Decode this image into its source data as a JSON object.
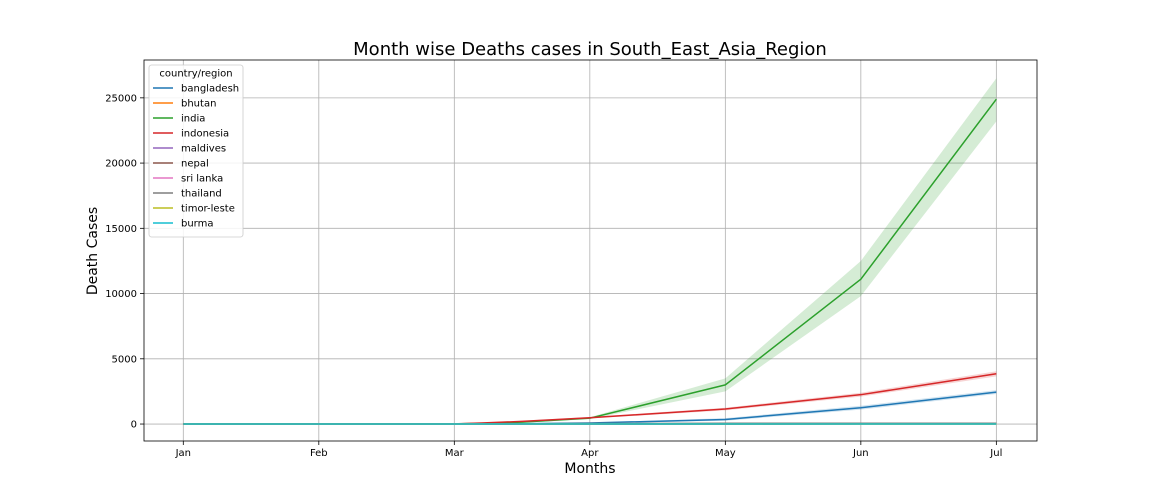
{
  "chart_data": {
    "type": "line",
    "title": "Month wise Deaths cases in South_East_Asia_Region",
    "xlabel": "Months",
    "ylabel": "Death Cases",
    "categories": [
      "Jan",
      "Feb",
      "Mar",
      "Apr",
      "May",
      "Jun",
      "Jul"
    ],
    "yticks": [
      0,
      5000,
      10000,
      15000,
      20000,
      25000
    ],
    "ylim": [
      -1300,
      27900
    ],
    "xlim": [
      -0.29,
      6.3
    ],
    "grid": true,
    "legend": {
      "title": "country/region",
      "placement": "top-left"
    },
    "series": [
      {
        "name": "bangladesh",
        "color": "#1f77b4",
        "points": [
          [
            0,
            0
          ],
          [
            1,
            0
          ],
          [
            2,
            0
          ],
          [
            2.4,
            10
          ],
          [
            3,
            80
          ],
          [
            4,
            350
          ],
          [
            5,
            1250
          ],
          [
            6,
            2450
          ]
        ],
        "lower": [
          [
            0,
            0
          ],
          [
            1,
            0
          ],
          [
            2,
            0
          ],
          [
            2.4,
            5
          ],
          [
            3,
            50
          ],
          [
            4,
            250
          ],
          [
            5,
            1100
          ],
          [
            6,
            2300
          ]
        ],
        "upper": [
          [
            0,
            0
          ],
          [
            1,
            0
          ],
          [
            2,
            0
          ],
          [
            2.4,
            15
          ],
          [
            3,
            110
          ],
          [
            4,
            450
          ],
          [
            5,
            1400
          ],
          [
            6,
            2600
          ]
        ]
      },
      {
        "name": "bhutan",
        "color": "#ff7f0e",
        "points": [
          [
            0,
            0
          ],
          [
            1,
            0
          ],
          [
            2,
            0
          ],
          [
            3,
            0
          ],
          [
            4,
            0
          ],
          [
            5,
            0
          ],
          [
            6,
            0
          ]
        ],
        "lower": [
          [
            0,
            0
          ],
          [
            1,
            0
          ],
          [
            2,
            0
          ],
          [
            3,
            0
          ],
          [
            4,
            0
          ],
          [
            5,
            0
          ],
          [
            6,
            0
          ]
        ],
        "upper": [
          [
            0,
            0
          ],
          [
            1,
            0
          ],
          [
            2,
            0
          ],
          [
            3,
            0
          ],
          [
            4,
            0
          ],
          [
            5,
            0
          ],
          [
            6,
            0
          ]
        ]
      },
      {
        "name": "india",
        "color": "#2ca02c",
        "points": [
          [
            0,
            0
          ],
          [
            1,
            0
          ],
          [
            2,
            10
          ],
          [
            2.2,
            50
          ],
          [
            2.5,
            150
          ],
          [
            3,
            450
          ],
          [
            4,
            3000
          ],
          [
            5,
            11100
          ],
          [
            6,
            24900
          ]
        ],
        "lower": [
          [
            0,
            0
          ],
          [
            1,
            0
          ],
          [
            2,
            5
          ],
          [
            2.2,
            30
          ],
          [
            2.5,
            100
          ],
          [
            3,
            380
          ],
          [
            4,
            2500
          ],
          [
            5,
            9800
          ],
          [
            6,
            23200
          ]
        ],
        "upper": [
          [
            0,
            0
          ],
          [
            1,
            0
          ],
          [
            2,
            15
          ],
          [
            2.2,
            70
          ],
          [
            2.5,
            200
          ],
          [
            3,
            520
          ],
          [
            4,
            3500
          ],
          [
            5,
            12500
          ],
          [
            6,
            26500
          ]
        ]
      },
      {
        "name": "indonesia",
        "color": "#d62728",
        "points": [
          [
            0,
            0
          ],
          [
            1,
            0
          ],
          [
            2,
            15
          ],
          [
            2.2,
            80
          ],
          [
            2.5,
            200
          ],
          [
            3,
            480
          ],
          [
            4,
            1150
          ],
          [
            5,
            2250
          ],
          [
            6,
            3850
          ]
        ],
        "lower": [
          [
            0,
            0
          ],
          [
            1,
            0
          ],
          [
            2,
            10
          ],
          [
            2.2,
            60
          ],
          [
            2.5,
            160
          ],
          [
            3,
            420
          ],
          [
            4,
            1050
          ],
          [
            5,
            2100
          ],
          [
            6,
            3650
          ]
        ],
        "upper": [
          [
            0,
            0
          ],
          [
            1,
            0
          ],
          [
            2,
            20
          ],
          [
            2.2,
            100
          ],
          [
            2.5,
            240
          ],
          [
            3,
            540
          ],
          [
            4,
            1250
          ],
          [
            5,
            2400
          ],
          [
            6,
            4050
          ]
        ]
      },
      {
        "name": "maldives",
        "color": "#9467bd",
        "points": [
          [
            0,
            0
          ],
          [
            1,
            0
          ],
          [
            2,
            0
          ],
          [
            3,
            0
          ],
          [
            4,
            5
          ],
          [
            5,
            20
          ],
          [
            6,
            30
          ]
        ],
        "lower": [
          [
            0,
            0
          ],
          [
            1,
            0
          ],
          [
            2,
            0
          ],
          [
            3,
            0
          ],
          [
            4,
            3
          ],
          [
            5,
            15
          ],
          [
            6,
            25
          ]
        ],
        "upper": [
          [
            0,
            0
          ],
          [
            1,
            0
          ],
          [
            2,
            0
          ],
          [
            3,
            0
          ],
          [
            4,
            7
          ],
          [
            5,
            25
          ],
          [
            6,
            35
          ]
        ]
      },
      {
        "name": "nepal",
        "color": "#8c564b",
        "points": [
          [
            0,
            0
          ],
          [
            1,
            0
          ],
          [
            2,
            0
          ],
          [
            3,
            0
          ],
          [
            4,
            3
          ],
          [
            5,
            20
          ],
          [
            6,
            60
          ]
        ],
        "lower": [
          [
            0,
            0
          ],
          [
            1,
            0
          ],
          [
            2,
            0
          ],
          [
            3,
            0
          ],
          [
            4,
            1
          ],
          [
            5,
            15
          ],
          [
            6,
            50
          ]
        ],
        "upper": [
          [
            0,
            0
          ],
          [
            1,
            0
          ],
          [
            2,
            0
          ],
          [
            3,
            0
          ],
          [
            4,
            5
          ],
          [
            5,
            25
          ],
          [
            6,
            70
          ]
        ]
      },
      {
        "name": "sri lanka",
        "color": "#e377c2",
        "points": [
          [
            0,
            0
          ],
          [
            1,
            0
          ],
          [
            2,
            0
          ],
          [
            3,
            7
          ],
          [
            4,
            9
          ],
          [
            5,
            11
          ],
          [
            6,
            11
          ]
        ],
        "lower": [
          [
            0,
            0
          ],
          [
            1,
            0
          ],
          [
            2,
            0
          ],
          [
            3,
            5
          ],
          [
            4,
            9
          ],
          [
            5,
            11
          ],
          [
            6,
            11
          ]
        ],
        "upper": [
          [
            0,
            0
          ],
          [
            1,
            0
          ],
          [
            2,
            0
          ],
          [
            3,
            9
          ],
          [
            4,
            9
          ],
          [
            5,
            11
          ],
          [
            6,
            11
          ]
        ]
      },
      {
        "name": "thailand",
        "color": "#7f7f7f",
        "points": [
          [
            0,
            0
          ],
          [
            1,
            0
          ],
          [
            2,
            1
          ],
          [
            3,
            40
          ],
          [
            4,
            56
          ],
          [
            5,
            58
          ],
          [
            6,
            58
          ]
        ],
        "lower": [
          [
            0,
            0
          ],
          [
            1,
            0
          ],
          [
            2,
            0
          ],
          [
            3,
            30
          ],
          [
            4,
            55
          ],
          [
            5,
            57
          ],
          [
            6,
            58
          ]
        ],
        "upper": [
          [
            0,
            0
          ],
          [
            1,
            0
          ],
          [
            2,
            2
          ],
          [
            3,
            50
          ],
          [
            4,
            57
          ],
          [
            5,
            58
          ],
          [
            6,
            58
          ]
        ]
      },
      {
        "name": "timor-leste",
        "color": "#bcbd22",
        "points": [
          [
            0,
            0
          ],
          [
            1,
            0
          ],
          [
            2,
            0
          ],
          [
            3,
            0
          ],
          [
            4,
            0
          ],
          [
            5,
            0
          ],
          [
            6,
            0
          ]
        ],
        "lower": [
          [
            0,
            0
          ],
          [
            1,
            0
          ],
          [
            2,
            0
          ],
          [
            3,
            0
          ],
          [
            4,
            0
          ],
          [
            5,
            0
          ],
          [
            6,
            0
          ]
        ],
        "upper": [
          [
            0,
            0
          ],
          [
            1,
            0
          ],
          [
            2,
            0
          ],
          [
            3,
            0
          ],
          [
            4,
            0
          ],
          [
            5,
            0
          ],
          [
            6,
            0
          ]
        ]
      },
      {
        "name": "burma",
        "color": "#17becf",
        "points": [
          [
            0,
            0
          ],
          [
            1,
            0
          ],
          [
            2,
            0
          ],
          [
            3,
            3
          ],
          [
            4,
            6
          ],
          [
            5,
            6
          ],
          [
            6,
            6
          ]
        ],
        "lower": [
          [
            0,
            0
          ],
          [
            1,
            0
          ],
          [
            2,
            0
          ],
          [
            3,
            2
          ],
          [
            4,
            6
          ],
          [
            5,
            6
          ],
          [
            6,
            6
          ]
        ],
        "upper": [
          [
            0,
            0
          ],
          [
            1,
            0
          ],
          [
            2,
            0
          ],
          [
            3,
            4
          ],
          [
            4,
            6
          ],
          [
            5,
            6
          ],
          [
            6,
            6
          ]
        ]
      }
    ]
  }
}
